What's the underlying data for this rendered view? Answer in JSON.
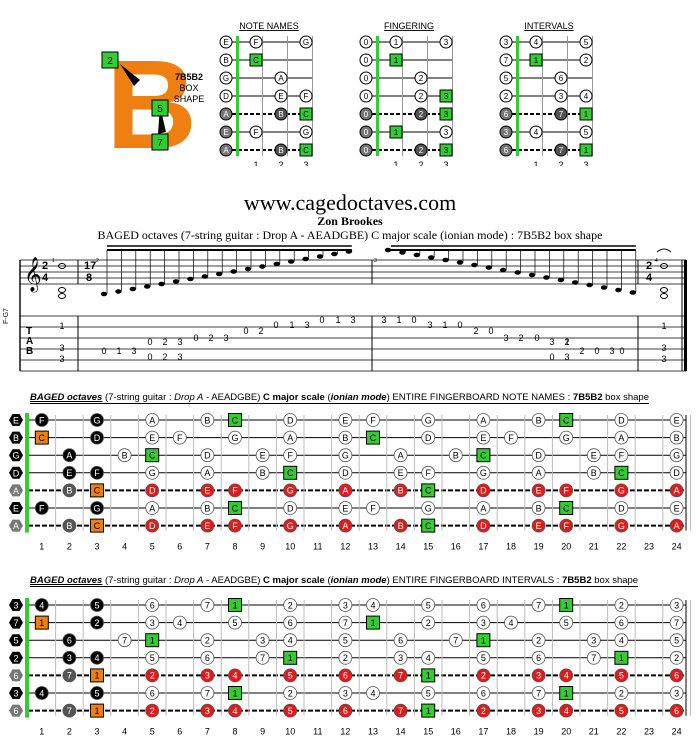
{
  "logo": {
    "letter": "B",
    "shape_label_1": "7B5B2",
    "shape_label_2": "BOX",
    "shape_label_3": "SHAPE",
    "badge_top": "2",
    "badge_mid": "5",
    "badge_bot": "7"
  },
  "mini": {
    "names": {
      "title": "NOTE NAMES",
      "frets": [
        "1",
        "2",
        "3"
      ],
      "strings": [
        [
          "E",
          "F",
          "",
          "G"
        ],
        [
          "B",
          "C",
          "",
          ""
        ],
        [
          "G",
          "",
          "A",
          ""
        ],
        [
          "D",
          "",
          "E",
          "F"
        ],
        [
          "A",
          "",
          "B",
          "C"
        ],
        [
          "E",
          "F",
          "",
          "G"
        ],
        [
          "A",
          "",
          "B",
          "C"
        ]
      ]
    },
    "fingering": {
      "title": "FINGERING",
      "frets": [
        "1",
        "2",
        "3"
      ],
      "strings": [
        [
          "0",
          "1",
          "",
          "3"
        ],
        [
          "0",
          "1",
          "",
          ""
        ],
        [
          "0",
          "",
          "2",
          ""
        ],
        [
          "0",
          "",
          "2",
          "3"
        ],
        [
          "0",
          "",
          "2",
          "3"
        ],
        [
          "0",
          "1",
          "",
          "3"
        ],
        [
          "0",
          "",
          "2",
          "3"
        ]
      ]
    },
    "intervals": {
      "title": "INTERVALS",
      "frets": [
        "1",
        "2",
        "3"
      ],
      "strings": [
        [
          "3",
          "4",
          "",
          "5"
        ],
        [
          "7",
          "1",
          "",
          "2"
        ],
        [
          "5",
          "",
          "6",
          ""
        ],
        [
          "2",
          "",
          "3",
          "4"
        ],
        [
          "6",
          "",
          "7",
          "1"
        ],
        [
          "3",
          "4",
          "",
          "5"
        ],
        [
          "6",
          "",
          "7",
          "1"
        ]
      ]
    }
  },
  "site": "www.cagedoctaves.com",
  "author": "Zon Brookes",
  "subtitle": "BAGED octaves (7-string guitar : Drop A - AEADGBE) C major scale (ionian mode) : 7B5B2 box shape",
  "score": {
    "chord_label": "F-G7",
    "tab_letters": [
      "T",
      "A",
      "B"
    ],
    "time1": [
      "2",
      "4"
    ],
    "time2": [
      "17",
      "8"
    ],
    "time3": [
      "2",
      "4"
    ],
    "measure_nums": [
      "1",
      "2",
      "3",
      "4"
    ],
    "tab_m1": [
      "1",
      "3",
      "3"
    ],
    "tab_m4": [
      "1",
      "3",
      "3"
    ],
    "tab_numbers": [
      "0",
      "1",
      "3",
      "0",
      "2",
      "3",
      "0",
      "2",
      "3",
      "0",
      "2",
      "3",
      "0",
      "2",
      "0",
      "1",
      "3",
      "0",
      "1",
      "3",
      "3",
      "1",
      "0",
      "3",
      "1",
      "0",
      "2",
      "0",
      "3",
      "2",
      "0",
      "3",
      "2",
      "0",
      "3",
      "2",
      "0",
      "3",
      "1",
      "0"
    ]
  },
  "board1": {
    "title_parts": [
      "BAGED octaves",
      "  (7-string guitar : ",
      "Drop A",
      " - AEADGBE) ",
      "C major scale",
      "  (",
      "ionian mode",
      ") ENTIRE FINGERBOARD  NOTE NAMES  : ",
      "7B5B2",
      " box shape"
    ],
    "open": [
      "E",
      "B",
      "G",
      "D",
      "A",
      "E",
      "A"
    ],
    "frets": [
      "1",
      "2",
      "3",
      "4",
      "5",
      "6",
      "7",
      "8",
      "9",
      "10",
      "11",
      "12",
      "13",
      "14",
      "15",
      "16",
      "17",
      "18",
      "19",
      "20",
      "21",
      "22",
      "23",
      "24"
    ]
  },
  "board2": {
    "title_parts": [
      "BAGED octaves",
      "  (7-string guitar : ",
      "Drop A",
      " - AEADGBE) ",
      "C major scale",
      "  (",
      "ionian mode",
      ") ENTIRE FINGERBOARD  INTERVALS  : ",
      "7B5B2",
      " box shape"
    ],
    "open": [
      "3",
      "7",
      "5",
      "2",
      "6",
      "3",
      "6"
    ],
    "frets": [
      "1",
      "2",
      "3",
      "4",
      "5",
      "6",
      "7",
      "8",
      "9",
      "10",
      "11",
      "12",
      "13",
      "14",
      "15",
      "16",
      "17",
      "18",
      "19",
      "20",
      "21",
      "22",
      "23",
      "24"
    ]
  },
  "colors": {
    "orange": "#f07f12",
    "green": "#33cc33",
    "red": "#e41a1a",
    "dark": "#555555",
    "black": "#000000"
  }
}
